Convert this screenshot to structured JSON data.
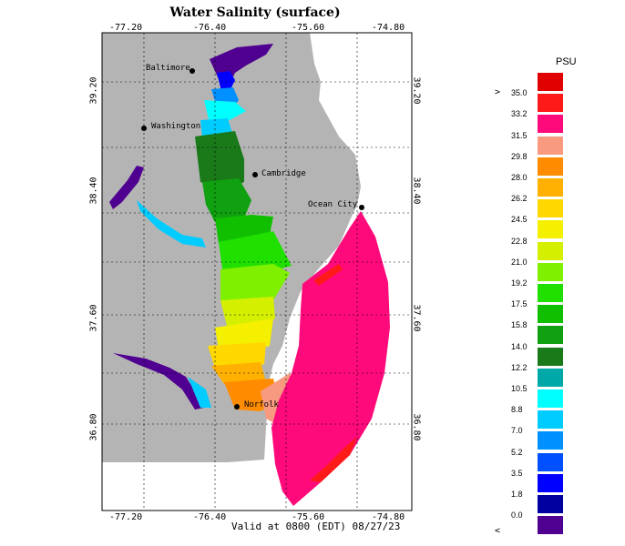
{
  "title": "Water Salinity (surface)",
  "valid_text": "Valid at 0800 (EDT) 08/27/23",
  "axes": {
    "lon_ticks_top": [
      "-77.20",
      "-76.40",
      "-75.60",
      "-74.80"
    ],
    "lon_ticks_bottom": [
      "-77.20",
      "-76.40",
      "-75.60",
      "-74.80"
    ],
    "lat_ticks_left": [
      "39.20",
      "38.40",
      "37.60",
      "36.80"
    ],
    "lat_ticks_right": [
      "39.20",
      "38.40",
      "37.60",
      "36.80"
    ]
  },
  "cities": [
    {
      "name": "Baltimore"
    },
    {
      "name": "Washington"
    },
    {
      "name": "Cambridge"
    },
    {
      "name": "Ocean City"
    },
    {
      "name": "Norfolk"
    }
  ],
  "legend": {
    "unit": "PSU",
    "gt_symbol": ">",
    "lt_symbol": "<",
    "labels": [
      "35.0",
      "33.2",
      "31.5",
      "29.8",
      "28.0",
      "26.2",
      "24.5",
      "22.8",
      "21.0",
      "19.2",
      "17.5",
      "15.8",
      "14.0",
      "12.2",
      "10.5",
      "8.8",
      "7.0",
      "5.2",
      "3.5",
      "1.8",
      "0.0"
    ],
    "colors": [
      "#e00000",
      "#ff1a1a",
      "#ff0a7a",
      "#f79a80",
      "#ff8c00",
      "#ffb000",
      "#ffd800",
      "#f5f000",
      "#d4f000",
      "#7ef000",
      "#20e000",
      "#10c000",
      "#10a010",
      "#1a7a1a",
      "#00a8a8",
      "#00ffff",
      "#00ccff",
      "#0090ff",
      "#0050ff",
      "#0000ff",
      "#0000a0",
      "#500090"
    ]
  },
  "colors": {
    "land": "#b4b4b4",
    "ocean_high": "#ff0a7a",
    "background": "#ffffff"
  }
}
